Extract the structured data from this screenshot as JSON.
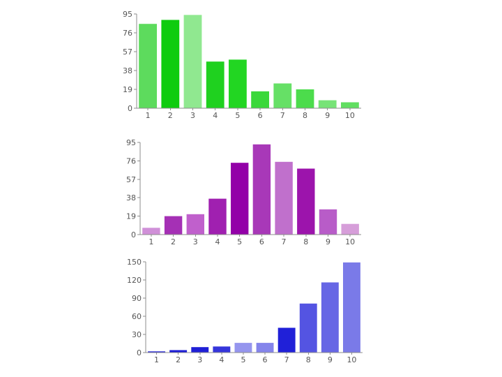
{
  "chart_data": [
    {
      "type": "bar",
      "categories": [
        "1",
        "2",
        "3",
        "4",
        "5",
        "6",
        "7",
        "8",
        "9",
        "10"
      ],
      "values": [
        85,
        89,
        94,
        47,
        49,
        17,
        25,
        19,
        8,
        6
      ],
      "bar_colors": [
        "#5ddb5d",
        "#0fcc0f",
        "#90e890",
        "#1fd11f",
        "#22d622",
        "#3ad83a",
        "#66e066",
        "#4cdc4c",
        "#77e377",
        "#60de60"
      ],
      "yticks": [
        0,
        19,
        38,
        57,
        76,
        95
      ],
      "ylim": [
        0,
        95
      ],
      "grid": false
    },
    {
      "type": "bar",
      "categories": [
        "1",
        "2",
        "3",
        "4",
        "5",
        "6",
        "7",
        "8",
        "9",
        "10"
      ],
      "values": [
        7,
        19,
        21,
        37,
        74,
        93,
        75,
        68,
        26,
        11
      ],
      "bar_colors": [
        "#d090d8",
        "#a530b5",
        "#c060cc",
        "#a020b0",
        "#9300a8",
        "#a838b8",
        "#c070cc",
        "#9c14ac",
        "#b85cc8",
        "#d69ed9"
      ],
      "yticks": [
        0,
        19,
        38,
        57,
        76,
        95
      ],
      "ylim": [
        0,
        95
      ],
      "grid": false
    },
    {
      "type": "bar",
      "categories": [
        "1",
        "2",
        "3",
        "4",
        "5",
        "6",
        "7",
        "8",
        "9",
        "10"
      ],
      "values": [
        2,
        4,
        9,
        10,
        16,
        16,
        41,
        81,
        116,
        149
      ],
      "bar_colors": [
        "#2424d8",
        "#1c1cd6",
        "#1f1fd6",
        "#3535db",
        "#9595ee",
        "#8484eb",
        "#2020d8",
        "#5454e2",
        "#6666e5",
        "#7a7ae8"
      ],
      "yticks": [
        0,
        30,
        60,
        90,
        120,
        150
      ],
      "ylim": [
        0,
        150
      ],
      "grid": false
    }
  ]
}
